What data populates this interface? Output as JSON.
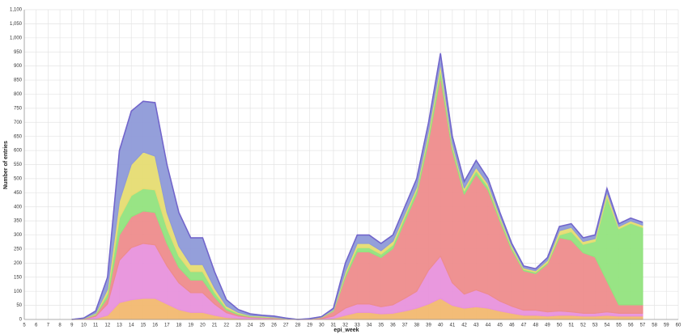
{
  "chart_data": {
    "type": "stacked_area",
    "x_label": "epi_week",
    "y_label": "Number of entries",
    "x": [
      9,
      10,
      11,
      12,
      13,
      14,
      15,
      16,
      17,
      18,
      19,
      20,
      21,
      22,
      23,
      24,
      25,
      26,
      27,
      28,
      29,
      30,
      31,
      32,
      33,
      34,
      35,
      36,
      37,
      38,
      39,
      40,
      41,
      42,
      43,
      44,
      45,
      46,
      47,
      48,
      49,
      50,
      51,
      52,
      53,
      54,
      55,
      56,
      57
    ],
    "xlim": [
      5,
      60
    ],
    "xticks": [
      5,
      6,
      7,
      8,
      9,
      10,
      11,
      12,
      13,
      14,
      15,
      16,
      17,
      18,
      19,
      20,
      21,
      22,
      23,
      24,
      25,
      26,
      27,
      28,
      29,
      30,
      31,
      32,
      33,
      34,
      35,
      36,
      37,
      38,
      39,
      40,
      41,
      42,
      43,
      44,
      45,
      46,
      47,
      48,
      49,
      50,
      51,
      52,
      53,
      54,
      55,
      56,
      57,
      58,
      59,
      60
    ],
    "ylim": [
      0,
      1100
    ],
    "yticks": [
      0,
      50,
      100,
      150,
      200,
      250,
      300,
      350,
      400,
      450,
      500,
      550,
      600,
      650,
      700,
      750,
      800,
      850,
      900,
      950,
      {
        "value": 1000,
        "label": "1,000"
      },
      {
        "value": 1050,
        "label": "1,050"
      },
      {
        "value": 1100,
        "label": "1,100"
      }
    ],
    "grid": true,
    "series": [
      {
        "color": "#f2b870",
        "values": [
          0,
          1,
          3,
          15,
          60,
          70,
          75,
          75,
          55,
          35,
          25,
          25,
          15,
          7,
          4,
          2,
          2,
          1,
          1,
          0,
          0,
          1,
          4,
          15,
          25,
          25,
          20,
          22,
          30,
          40,
          55,
          75,
          50,
          40,
          45,
          40,
          30,
          22,
          15,
          15,
          12,
          15,
          15,
          12,
          12,
          15,
          12,
          12,
          12
        ]
      },
      {
        "color": "#e892dc",
        "values": [
          0,
          1,
          8,
          40,
          150,
          185,
          195,
          190,
          135,
          95,
          70,
          70,
          40,
          17,
          8,
          5,
          4,
          3,
          1,
          0,
          1,
          2,
          8,
          25,
          30,
          30,
          25,
          30,
          45,
          60,
          120,
          150,
          80,
          50,
          60,
          50,
          35,
          25,
          18,
          18,
          15,
          15,
          12,
          10,
          10,
          12,
          10,
          10,
          10
        ]
      },
      {
        "color": "#ee8c8c",
        "values": [
          0,
          1,
          5,
          22,
          90,
          110,
          115,
          115,
          80,
          55,
          45,
          45,
          25,
          10,
          5,
          3,
          2,
          2,
          1,
          0,
          1,
          4,
          18,
          110,
          185,
          185,
          175,
          200,
          275,
          345,
          460,
          640,
          470,
          355,
          410,
          370,
          285,
          200,
          140,
          130,
          170,
          260,
          255,
          215,
          200,
          110,
          30,
          30,
          30
        ]
      },
      {
        "color": "#92e37e",
        "values": [
          0,
          1,
          3,
          15,
          60,
          75,
          80,
          80,
          55,
          40,
          30,
          30,
          17,
          7,
          4,
          2,
          2,
          1,
          1,
          0,
          0,
          1,
          3,
          10,
          15,
          15,
          12,
          13,
          15,
          15,
          20,
          25,
          15,
          12,
          13,
          12,
          10,
          8,
          5,
          5,
          5,
          10,
          30,
          30,
          55,
          300,
          270,
          290,
          275
        ]
      },
      {
        "color": "#e6dc72",
        "values": [
          0,
          0,
          3,
          15,
          60,
          110,
          130,
          120,
          55,
          35,
          25,
          25,
          15,
          7,
          4,
          2,
          2,
          1,
          0,
          0,
          0,
          1,
          2,
          10,
          15,
          15,
          12,
          13,
          10,
          10,
          15,
          20,
          10,
          10,
          12,
          10,
          8,
          7,
          5,
          5,
          8,
          15,
          15,
          10,
          10,
          15,
          8,
          8,
          8
        ]
      },
      {
        "color": "#8e9ad8",
        "values": [
          0,
          1,
          8,
          43,
          180,
          190,
          180,
          190,
          170,
          120,
          95,
          95,
          58,
          22,
          10,
          6,
          3,
          4,
          1,
          0,
          1,
          1,
          5,
          30,
          30,
          30,
          26,
          22,
          25,
          30,
          30,
          35,
          25,
          23,
          25,
          18,
          12,
          8,
          7,
          7,
          10,
          15,
          13,
          13,
          13,
          13,
          10,
          10,
          10
        ]
      }
    ]
  }
}
